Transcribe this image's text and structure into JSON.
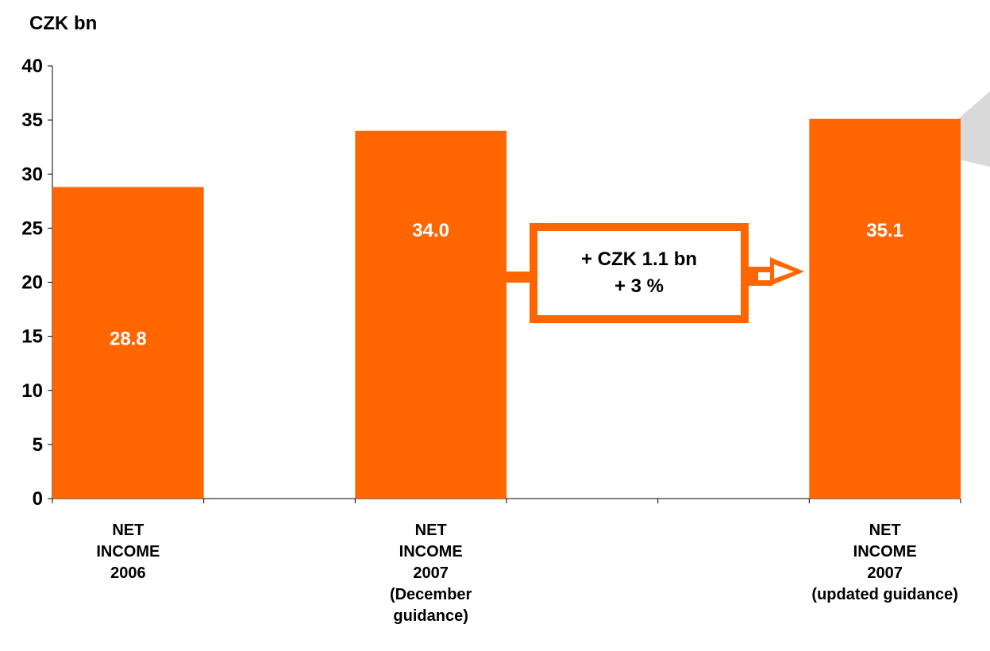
{
  "chart_data": {
    "type": "bar",
    "unit_label": "CZK bn",
    "ylim": [
      0,
      40
    ],
    "yticks": [
      "0",
      "5",
      "10",
      "15",
      "20",
      "25",
      "30",
      "35",
      "40"
    ],
    "categories": [
      [
        "NET",
        "INCOME",
        "2006"
      ],
      [
        "NET",
        "INCOME",
        "2007",
        "(December",
        "guidance)"
      ],
      [
        "NET",
        "INCOME",
        "2007",
        "(updated guidance)"
      ]
    ],
    "values": [
      28.8,
      34.0,
      35.1
    ],
    "value_labels": [
      "28.8",
      "34.0",
      "35.1"
    ],
    "bar_color": "#ff6600",
    "callout": {
      "lines": [
        "+ CZK 1.1 bn",
        "+ 3 %"
      ],
      "color": "#ff6600"
    },
    "grid": false
  }
}
